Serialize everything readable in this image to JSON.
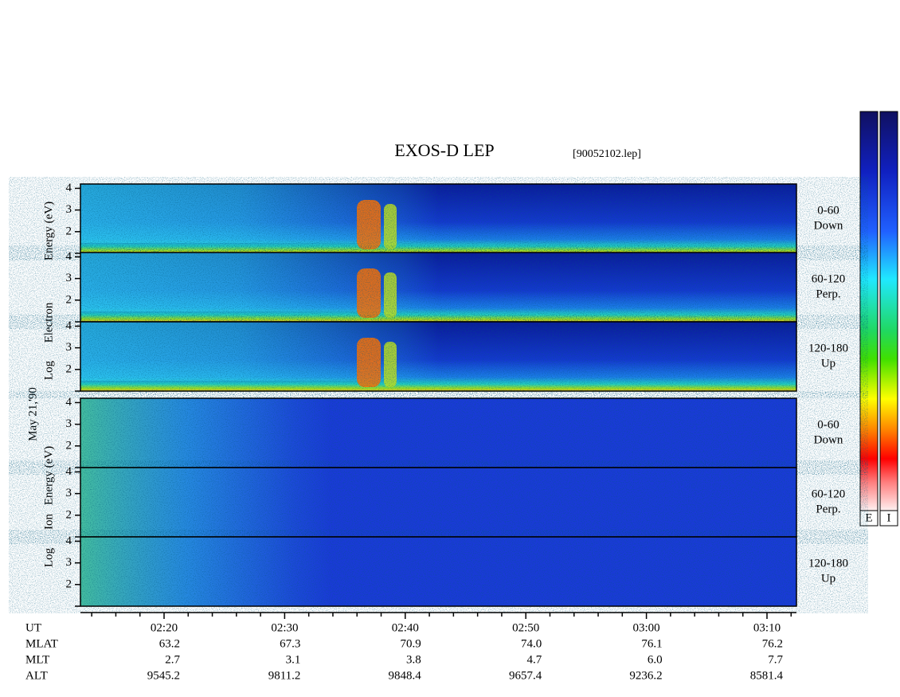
{
  "title": "EXOS-D LEP",
  "file": "[90052102.lep]",
  "date_label": "May 21,'90",
  "ylim": [
    1,
    4.2
  ],
  "yticks": [
    2,
    3,
    4
  ],
  "groups": [
    {
      "words": [
        "Energy (eV)",
        "Electron",
        "Log"
      ],
      "panels": [
        [
          "0-60",
          "Down"
        ],
        [
          "60-120",
          "Perp."
        ],
        [
          "120-180",
          "Up"
        ]
      ]
    },
    {
      "words": [
        "Energy (eV)",
        "Ion",
        "Log"
      ],
      "panels": [
        [
          "0-60",
          "Down"
        ],
        [
          "60-120",
          "Perp."
        ],
        [
          "120-180",
          "Up"
        ]
      ]
    }
  ],
  "table": {
    "row_labels": [
      "UT",
      "MLAT",
      "MLT",
      "ALT"
    ],
    "columns": [
      [
        "02:20",
        "63.2",
        "2.7",
        "9545.2"
      ],
      [
        "02:30",
        "67.3",
        "3.1",
        "9811.2"
      ],
      [
        "02:40",
        "70.9",
        "3.8",
        "9848.4"
      ],
      [
        "02:50",
        "74.0",
        "4.7",
        "9657.4"
      ],
      [
        "03:00",
        "76.1",
        "6.0",
        "9236.2"
      ],
      [
        "03:10",
        "76.2",
        "7.7",
        "8581.4"
      ]
    ]
  },
  "colorbar_labels": [
    "E",
    "I"
  ]
}
